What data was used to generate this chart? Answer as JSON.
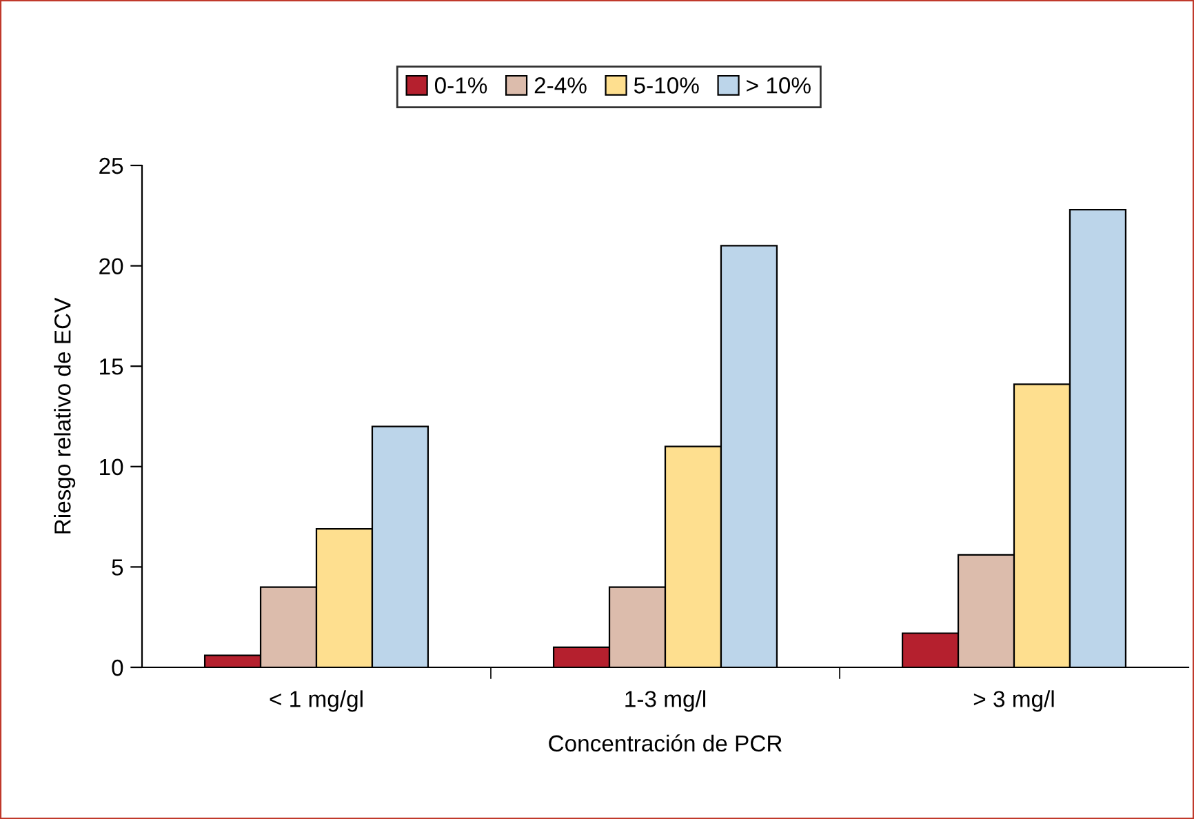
{
  "chart_data": {
    "type": "bar",
    "xlabel": "Concentración de PCR",
    "ylabel": "Riesgo relativo de ECV",
    "categories": [
      "< 1 mg/gl",
      "1-3 mg/l",
      "> 3 mg/l"
    ],
    "series": [
      {
        "name": "0-1%",
        "color": "#b5202e",
        "values": [
          0.6,
          1,
          1.7
        ]
      },
      {
        "name": "2-4%",
        "color": "#dcbcac",
        "values": [
          4,
          4,
          5.6
        ]
      },
      {
        "name": "5-10%",
        "color": "#fedf8f",
        "values": [
          6.9,
          11,
          14.1
        ]
      },
      {
        "name": "> 10%",
        "color": "#bcd5ea",
        "values": [
          12,
          21,
          22.8
        ]
      }
    ],
    "ylim": [
      0,
      25
    ],
    "yticks": [
      0,
      5,
      10,
      15,
      20,
      25
    ],
    "grid": false,
    "legend": "top"
  }
}
